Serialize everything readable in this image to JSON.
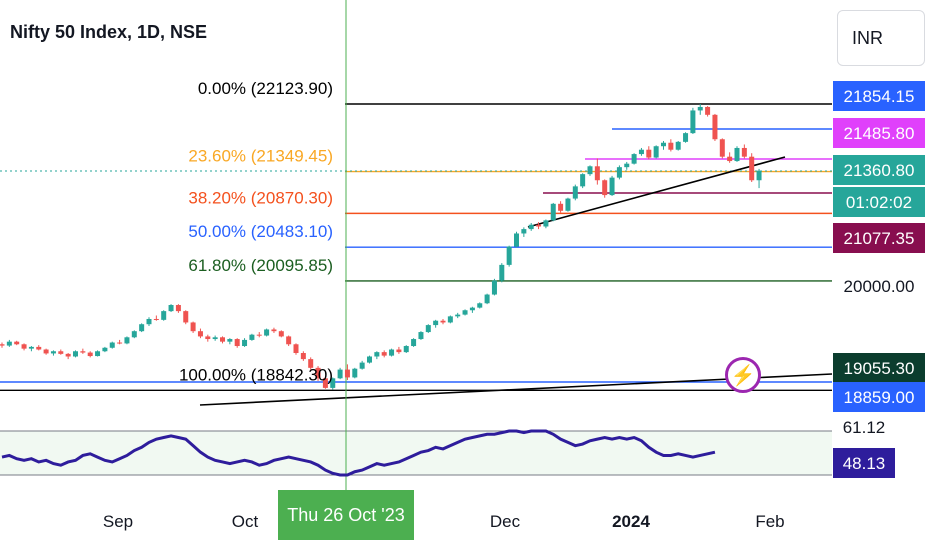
{
  "header": {
    "title": "Nifty 50 Index, 1D, NSE",
    "currency": "INR"
  },
  "crosshair": {
    "time_label": "Thu 26 Oct '23"
  },
  "icons": {
    "alert": "lightning-bolt-icon",
    "alert_color": "#9c27b0"
  },
  "colors": {
    "up": "#26a69a",
    "down": "#ef5350",
    "background": "#ffffff",
    "rsi_line": "#2e1d9c",
    "crosshair": "#4caf50"
  },
  "chart_data": {
    "type": "candlestick",
    "interval": "1D",
    "x_ticks": [
      "Sep",
      "Oct",
      "Dec",
      "2024",
      "Feb"
    ],
    "fib_levels": [
      {
        "label": "0.00% (22123.90)",
        "value": 22123.9,
        "color": "#000000"
      },
      {
        "label": "23.60% (21349.45)",
        "value": 21349.45,
        "color": "#f9a825"
      },
      {
        "label": "38.20% (20870.30)",
        "value": 20870.3,
        "color": "#f4511e"
      },
      {
        "label": "50.00% (20483.10)",
        "value": 20483.1,
        "color": "#2962ff"
      },
      {
        "label": "61.80% (20095.85)",
        "value": 20095.85,
        "color": "#1b5e20"
      },
      {
        "label": "100.00% (18842.30)",
        "value": 18842.3,
        "color": "#000000"
      }
    ],
    "price_labels": [
      {
        "text": "21854.15",
        "bg": "#2962ff",
        "fg": "#ffffff"
      },
      {
        "text": "21485.80",
        "bg": "#e040fb",
        "fg": "#ffffff"
      },
      {
        "text": "21360.80",
        "bg": "#26a69a",
        "fg": "#ffffff"
      },
      {
        "text": "01:02:02",
        "bg": "#26a69a",
        "fg": "#ffffff"
      },
      {
        "text": "21077.35",
        "bg": "#880e4f",
        "fg": "#ffffff"
      },
      {
        "text": "20000.00",
        "bg": "none",
        "fg": "#131722"
      },
      {
        "text": "19055.30",
        "bg": "#0b3d2e",
        "fg": "#ffffff"
      },
      {
        "text": "18859.00",
        "bg": "#2962ff",
        "fg": "#ffffff"
      }
    ],
    "rsi": {
      "labels": [
        {
          "text": "61.12",
          "bg": "none",
          "fg": "#131722"
        },
        {
          "text": "48.13",
          "bg": "#2e1d9c",
          "fg": "#ffffff"
        }
      ],
      "values": [
        46,
        47,
        45,
        44,
        45,
        43,
        44,
        42,
        41,
        43,
        44,
        47,
        48,
        46,
        44,
        43,
        45,
        47,
        50,
        52,
        55,
        57,
        58,
        59,
        58,
        57,
        53,
        49,
        46,
        44,
        43,
        42,
        43,
        44,
        43,
        41,
        42,
        44,
        45,
        46,
        45,
        44,
        43,
        41,
        38,
        36,
        35,
        35,
        37,
        38,
        40,
        42,
        41,
        42,
        43,
        45,
        47,
        49,
        50,
        52,
        51,
        53,
        55,
        57,
        58,
        59,
        60,
        60,
        61,
        62,
        62,
        61,
        62,
        62,
        62,
        60,
        57,
        55,
        53,
        54,
        56,
        57,
        58,
        57,
        58,
        57,
        58,
        56,
        52,
        49,
        47,
        47,
        48,
        47,
        46,
        47,
        48,
        49
      ]
    },
    "candles": [
      [
        19370,
        19390,
        19330,
        19355
      ],
      [
        19355,
        19420,
        19340,
        19400
      ],
      [
        19400,
        19410,
        19360,
        19370
      ],
      [
        19370,
        19380,
        19300,
        19320
      ],
      [
        19320,
        19350,
        19290,
        19340
      ],
      [
        19340,
        19360,
        19300,
        19310
      ],
      [
        19310,
        19320,
        19250,
        19265
      ],
      [
        19265,
        19300,
        19240,
        19290
      ],
      [
        19290,
        19310,
        19250,
        19260
      ],
      [
        19260,
        19270,
        19200,
        19230
      ],
      [
        19230,
        19300,
        19220,
        19290
      ],
      [
        19290,
        19320,
        19260,
        19275
      ],
      [
        19275,
        19290,
        19220,
        19235
      ],
      [
        19235,
        19300,
        19230,
        19290
      ],
      [
        19290,
        19340,
        19280,
        19330
      ],
      [
        19330,
        19400,
        19320,
        19390
      ],
      [
        19390,
        19420,
        19370,
        19380
      ],
      [
        19380,
        19460,
        19370,
        19450
      ],
      [
        19450,
        19530,
        19440,
        19520
      ],
      [
        19520,
        19610,
        19510,
        19600
      ],
      [
        19600,
        19680,
        19580,
        19660
      ],
      [
        19660,
        19700,
        19640,
        19650
      ],
      [
        19650,
        19760,
        19640,
        19750
      ],
      [
        19750,
        19830,
        19740,
        19820
      ],
      [
        19820,
        19830,
        19730,
        19750
      ],
      [
        19750,
        19760,
        19600,
        19620
      ],
      [
        19620,
        19630,
        19500,
        19520
      ],
      [
        19520,
        19550,
        19440,
        19460
      ],
      [
        19460,
        19480,
        19400,
        19430
      ],
      [
        19430,
        19470,
        19410,
        19450
      ],
      [
        19450,
        19460,
        19380,
        19400
      ],
      [
        19400,
        19440,
        19370,
        19430
      ],
      [
        19430,
        19440,
        19330,
        19350
      ],
      [
        19350,
        19440,
        19340,
        19420
      ],
      [
        19420,
        19490,
        19410,
        19480
      ],
      [
        19480,
        19510,
        19450,
        19470
      ],
      [
        19470,
        19550,
        19460,
        19540
      ],
      [
        19540,
        19560,
        19500,
        19520
      ],
      [
        19520,
        19530,
        19450,
        19460
      ],
      [
        19460,
        19470,
        19350,
        19370
      ],
      [
        19370,
        19380,
        19250,
        19270
      ],
      [
        19270,
        19290,
        19180,
        19200
      ],
      [
        19200,
        19220,
        19080,
        19100
      ],
      [
        19100,
        19120,
        18950,
        18980
      ],
      [
        18980,
        19000,
        18860,
        18870
      ],
      [
        18870,
        18990,
        18850,
        18980
      ],
      [
        18980,
        19100,
        18970,
        19080
      ],
      [
        19080,
        19140,
        18960,
        18990
      ],
      [
        18990,
        19100,
        18980,
        19090
      ],
      [
        19090,
        19180,
        19080,
        19160
      ],
      [
        19160,
        19240,
        19150,
        19230
      ],
      [
        19230,
        19290,
        19200,
        19280
      ],
      [
        19280,
        19300,
        19220,
        19240
      ],
      [
        19240,
        19320,
        19230,
        19310
      ],
      [
        19310,
        19340,
        19260,
        19280
      ],
      [
        19280,
        19360,
        19270,
        19350
      ],
      [
        19350,
        19440,
        19340,
        19430
      ],
      [
        19430,
        19520,
        19420,
        19510
      ],
      [
        19510,
        19600,
        19500,
        19590
      ],
      [
        19590,
        19650,
        19560,
        19640
      ],
      [
        19640,
        19660,
        19600,
        19620
      ],
      [
        19620,
        19700,
        19610,
        19690
      ],
      [
        19690,
        19730,
        19670,
        19710
      ],
      [
        19710,
        19770,
        19700,
        19760
      ],
      [
        19760,
        19800,
        19730,
        19790
      ],
      [
        19790,
        19850,
        19780,
        19840
      ],
      [
        19840,
        19950,
        19830,
        19940
      ],
      [
        19940,
        20120,
        19930,
        20100
      ],
      [
        20100,
        20300,
        20080,
        20280
      ],
      [
        20280,
        20500,
        20260,
        20490
      ],
      [
        20490,
        20660,
        20480,
        20640
      ],
      [
        20640,
        20710,
        20600,
        20690
      ],
      [
        20690,
        20760,
        20670,
        20740
      ],
      [
        20740,
        20770,
        20690,
        20720
      ],
      [
        20720,
        20800,
        20700,
        20790
      ],
      [
        20790,
        20990,
        20780,
        20980
      ],
      [
        20980,
        21010,
        20880,
        20900
      ],
      [
        20900,
        21050,
        20890,
        21040
      ],
      [
        21040,
        21200,
        21020,
        21180
      ],
      [
        21180,
        21330,
        21160,
        21320
      ],
      [
        21320,
        21420,
        21300,
        21410
      ],
      [
        21410,
        21500,
        21200,
        21250
      ],
      [
        21250,
        21260,
        21050,
        21080
      ],
      [
        21080,
        21300,
        21070,
        21280
      ],
      [
        21280,
        21420,
        21260,
        21400
      ],
      [
        21400,
        21460,
        21370,
        21440
      ],
      [
        21440,
        21560,
        21430,
        21550
      ],
      [
        21550,
        21620,
        21530,
        21600
      ],
      [
        21600,
        21640,
        21490,
        21510
      ],
      [
        21510,
        21650,
        21500,
        21640
      ],
      [
        21640,
        21700,
        21600,
        21680
      ],
      [
        21680,
        21720,
        21580,
        21600
      ],
      [
        21600,
        21700,
        21590,
        21690
      ],
      [
        21690,
        21800,
        21680,
        21790
      ],
      [
        21790,
        22080,
        21780,
        22050
      ],
      [
        22050,
        22124,
        22000,
        22090
      ],
      [
        22090,
        22100,
        21980,
        22000
      ],
      [
        22000,
        22010,
        21700,
        21720
      ],
      [
        21720,
        21730,
        21500,
        21520
      ],
      [
        21520,
        21570,
        21450,
        21470
      ],
      [
        21470,
        21640,
        21460,
        21620
      ],
      [
        21620,
        21660,
        21500,
        21520
      ],
      [
        21520,
        21560,
        21230,
        21250
      ],
      [
        21250,
        21380,
        21160,
        21360
      ]
    ]
  }
}
